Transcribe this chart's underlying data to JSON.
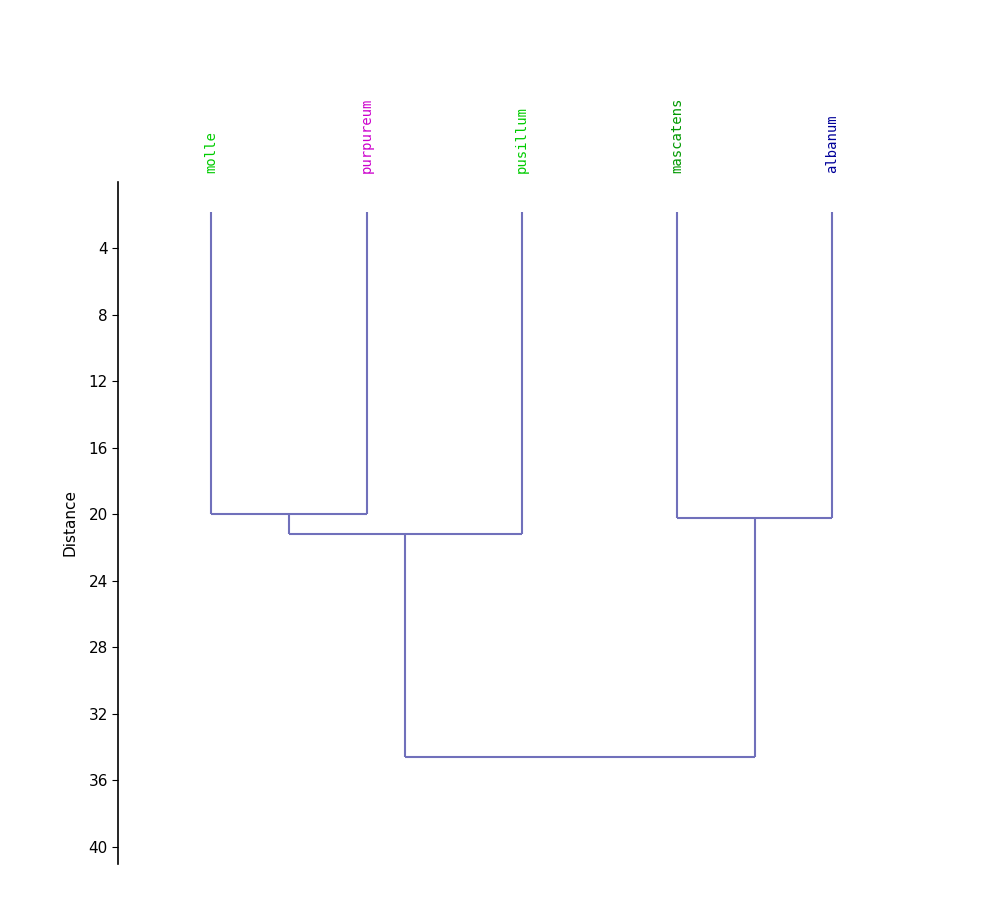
{
  "species": [
    "molle",
    "purpureum",
    "pusillum",
    "mascatens",
    "albanum"
  ],
  "species_colors": [
    "#00cc00",
    "#cc00cc",
    "#00cc00",
    "#009900",
    "#000099"
  ],
  "species_x": [
    1,
    2,
    3,
    4,
    5
  ],
  "line_color": "#7070bb",
  "line_width": 1.5,
  "ylabel": "Distance",
  "yticks": [
    4,
    8,
    12,
    16,
    20,
    24,
    28,
    32,
    36,
    40
  ],
  "ylim_top": 0,
  "ylim_bottom": 41,
  "xlim": [
    0.4,
    5.8
  ],
  "merge_molle_purpureum": 20.0,
  "merge_mp_pusillum": 21.2,
  "merge_mascatens_albanum": 20.2,
  "merge_all": 34.6,
  "top_y": 1.8,
  "label_fontsize": 10,
  "tick_fontsize": 11,
  "ylabel_fontsize": 11
}
